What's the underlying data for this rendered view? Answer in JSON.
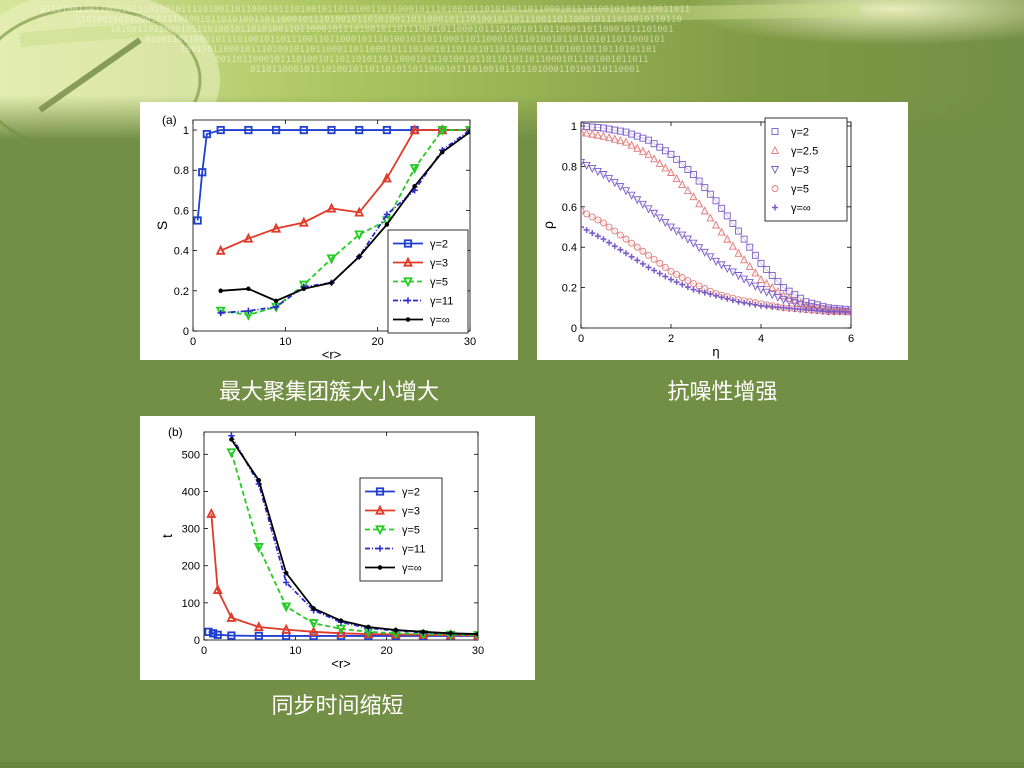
{
  "slide": {
    "captions": [
      "最大聚集团簇大小增大",
      "抗噪性增强",
      "同步时间缩短"
    ]
  },
  "colors": {
    "background": "#738f45",
    "blue": "#1f3fd0",
    "red": "#e03a2a",
    "green": "#22cc22",
    "navy": "#2a2ad0",
    "black": "#000000",
    "purple": "#7a5cc8"
  },
  "icons": {
    "banner": "binary-digits-clock-banner"
  },
  "chart_data": [
    {
      "id": "a",
      "type": "line",
      "panel_label": "(a)",
      "xlabel": "<r>",
      "ylabel": "S",
      "xlim": [
        0,
        30
      ],
      "ylim": [
        0,
        1.05
      ],
      "xticks": [
        "0",
        "10",
        "20",
        "30"
      ],
      "yticks": [
        "0",
        "0.2",
        "0.4",
        "0.6",
        "0.8",
        "1"
      ],
      "legend_position": "lower-right",
      "series": [
        {
          "name": "γ=2",
          "color": "#1f3fd0",
          "marker": "square",
          "dash": "solid",
          "x": [
            0.5,
            1,
            1.5,
            3,
            6,
            9,
            12,
            15,
            18,
            21,
            24,
            27,
            30
          ],
          "y": [
            0.55,
            0.79,
            0.98,
            1,
            1,
            1,
            1,
            1,
            1,
            1,
            1,
            1,
            1
          ]
        },
        {
          "name": "γ=3",
          "color": "#e03a2a",
          "marker": "triangle-up",
          "dash": "solid",
          "x": [
            3,
            6,
            9,
            12,
            15,
            18,
            21,
            24,
            27,
            30
          ],
          "y": [
            0.4,
            0.46,
            0.51,
            0.54,
            0.61,
            0.59,
            0.76,
            1,
            1,
            1
          ]
        },
        {
          "name": "γ=5",
          "color": "#22cc22",
          "marker": "triangle-down",
          "dash": "dashed",
          "x": [
            3,
            6,
            9,
            12,
            15,
            18,
            21,
            24,
            27,
            30
          ],
          "y": [
            0.1,
            0.08,
            0.12,
            0.23,
            0.36,
            0.48,
            0.55,
            0.81,
            1,
            1
          ]
        },
        {
          "name": "γ=11",
          "color": "#2a2ad0",
          "marker": "plus",
          "dash": "dashdot",
          "x": [
            3,
            6,
            9,
            12,
            15,
            18,
            21,
            24,
            27,
            30
          ],
          "y": [
            0.09,
            0.1,
            0.12,
            0.22,
            0.24,
            0.37,
            0.58,
            0.7,
            0.9,
            1
          ]
        },
        {
          "name": "γ=∞",
          "color": "#000000",
          "marker": "dot",
          "dash": "solid",
          "x": [
            3,
            6,
            9,
            12,
            15,
            18,
            21,
            24,
            27,
            30
          ],
          "y": [
            0.2,
            0.21,
            0.15,
            0.21,
            0.24,
            0.37,
            0.53,
            0.72,
            0.89,
            0.99
          ]
        }
      ]
    },
    {
      "id": "c",
      "type": "scatter",
      "panel_label": "",
      "xlabel": "η",
      "ylabel": "ρ",
      "xlim": [
        0,
        6
      ],
      "ylim": [
        0,
        1.02
      ],
      "xticks": [
        "0",
        "2",
        "4",
        "6"
      ],
      "yticks": [
        "0",
        "0.2",
        "0.4",
        "0.6",
        "0.8",
        "1"
      ],
      "legend_position": "top-right",
      "series": [
        {
          "name": "γ=2",
          "color": "#7a5cc8",
          "marker": "open-square",
          "x": [
            0,
            0.5,
            1,
            1.5,
            2,
            2.5,
            3,
            3.5,
            4,
            4.5,
            5,
            5.5,
            6
          ],
          "y": [
            1,
            0.99,
            0.97,
            0.93,
            0.86,
            0.76,
            0.63,
            0.48,
            0.32,
            0.2,
            0.13,
            0.1,
            0.09
          ]
        },
        {
          "name": "γ=2.5",
          "color": "#e07a7a",
          "marker": "open-triangle-up",
          "x": [
            0,
            0.5,
            1,
            1.5,
            2,
            2.5,
            3,
            3.5,
            4,
            4.5,
            5,
            5.5,
            6
          ],
          "y": [
            0.97,
            0.95,
            0.92,
            0.86,
            0.77,
            0.65,
            0.51,
            0.37,
            0.24,
            0.16,
            0.11,
            0.09,
            0.08
          ]
        },
        {
          "name": "γ=3",
          "color": "#7a5cc8",
          "marker": "open-triangle-down",
          "x": [
            0,
            0.5,
            1,
            1.5,
            2,
            2.5,
            3,
            3.5,
            4,
            4.5,
            5,
            5.5,
            6
          ],
          "y": [
            0.82,
            0.76,
            0.68,
            0.59,
            0.5,
            0.42,
            0.33,
            0.26,
            0.19,
            0.14,
            0.11,
            0.09,
            0.08
          ]
        },
        {
          "name": "γ=5",
          "color": "#e07a7a",
          "marker": "open-circle",
          "x": [
            0,
            0.5,
            1,
            1.5,
            2,
            2.5,
            3,
            3.5,
            4,
            4.5,
            5,
            5.5,
            6
          ],
          "y": [
            0.58,
            0.52,
            0.44,
            0.36,
            0.28,
            0.22,
            0.17,
            0.14,
            0.12,
            0.1,
            0.09,
            0.08,
            0.08
          ]
        },
        {
          "name": "γ=∞",
          "color": "#7a5cc8",
          "marker": "plus",
          "x": [
            0,
            0.5,
            1,
            1.5,
            2,
            2.5,
            3,
            3.5,
            4,
            4.5,
            5,
            5.5,
            6
          ],
          "y": [
            0.5,
            0.44,
            0.37,
            0.3,
            0.24,
            0.19,
            0.16,
            0.13,
            0.11,
            0.1,
            0.09,
            0.08,
            0.08
          ]
        }
      ]
    },
    {
      "id": "b",
      "type": "line",
      "panel_label": "(b)",
      "xlabel": "<r>",
      "ylabel": "t",
      "xlim": [
        0,
        30
      ],
      "ylim": [
        0,
        560
      ],
      "xticks": [
        "0",
        "10",
        "20",
        "30"
      ],
      "yticks": [
        "0",
        "100",
        "200",
        "300",
        "400",
        "500"
      ],
      "legend_position": "top-right",
      "series": [
        {
          "name": "γ=2",
          "color": "#1f3fd0",
          "marker": "square",
          "dash": "solid",
          "x": [
            0.5,
            1,
            1.5,
            3,
            6,
            9,
            12,
            15,
            18,
            21,
            24,
            27,
            30
          ],
          "y": [
            22,
            18,
            14,
            12,
            11,
            11,
            11,
            11,
            11,
            11,
            11,
            11,
            11
          ]
        },
        {
          "name": "γ=3",
          "color": "#e03a2a",
          "marker": "triangle-up",
          "dash": "solid",
          "x": [
            0.8,
            1.5,
            3,
            6,
            9,
            12,
            15,
            18,
            21,
            24,
            27,
            30
          ],
          "y": [
            340,
            135,
            60,
            35,
            28,
            22,
            18,
            16,
            15,
            14,
            13,
            12
          ]
        },
        {
          "name": "γ=5",
          "color": "#22cc22",
          "marker": "triangle-down",
          "dash": "dashed",
          "x": [
            3,
            6,
            9,
            12,
            15,
            18,
            21,
            24,
            27,
            30
          ],
          "y": [
            505,
            250,
            90,
            45,
            30,
            22,
            18,
            16,
            14,
            13
          ]
        },
        {
          "name": "γ=11",
          "color": "#2a2ad0",
          "marker": "plus",
          "dash": "dashdot",
          "x": [
            3,
            6,
            9,
            12,
            15,
            18,
            21,
            24,
            27,
            30
          ],
          "y": [
            550,
            420,
            155,
            80,
            48,
            32,
            25,
            20,
            17,
            15
          ]
        },
        {
          "name": "γ=∞",
          "color": "#000000",
          "marker": "dot",
          "dash": "solid",
          "x": [
            3,
            6,
            9,
            12,
            15,
            18,
            21,
            24,
            27,
            30
          ],
          "y": [
            540,
            430,
            180,
            85,
            52,
            35,
            27,
            22,
            18,
            16
          ]
        }
      ]
    }
  ]
}
